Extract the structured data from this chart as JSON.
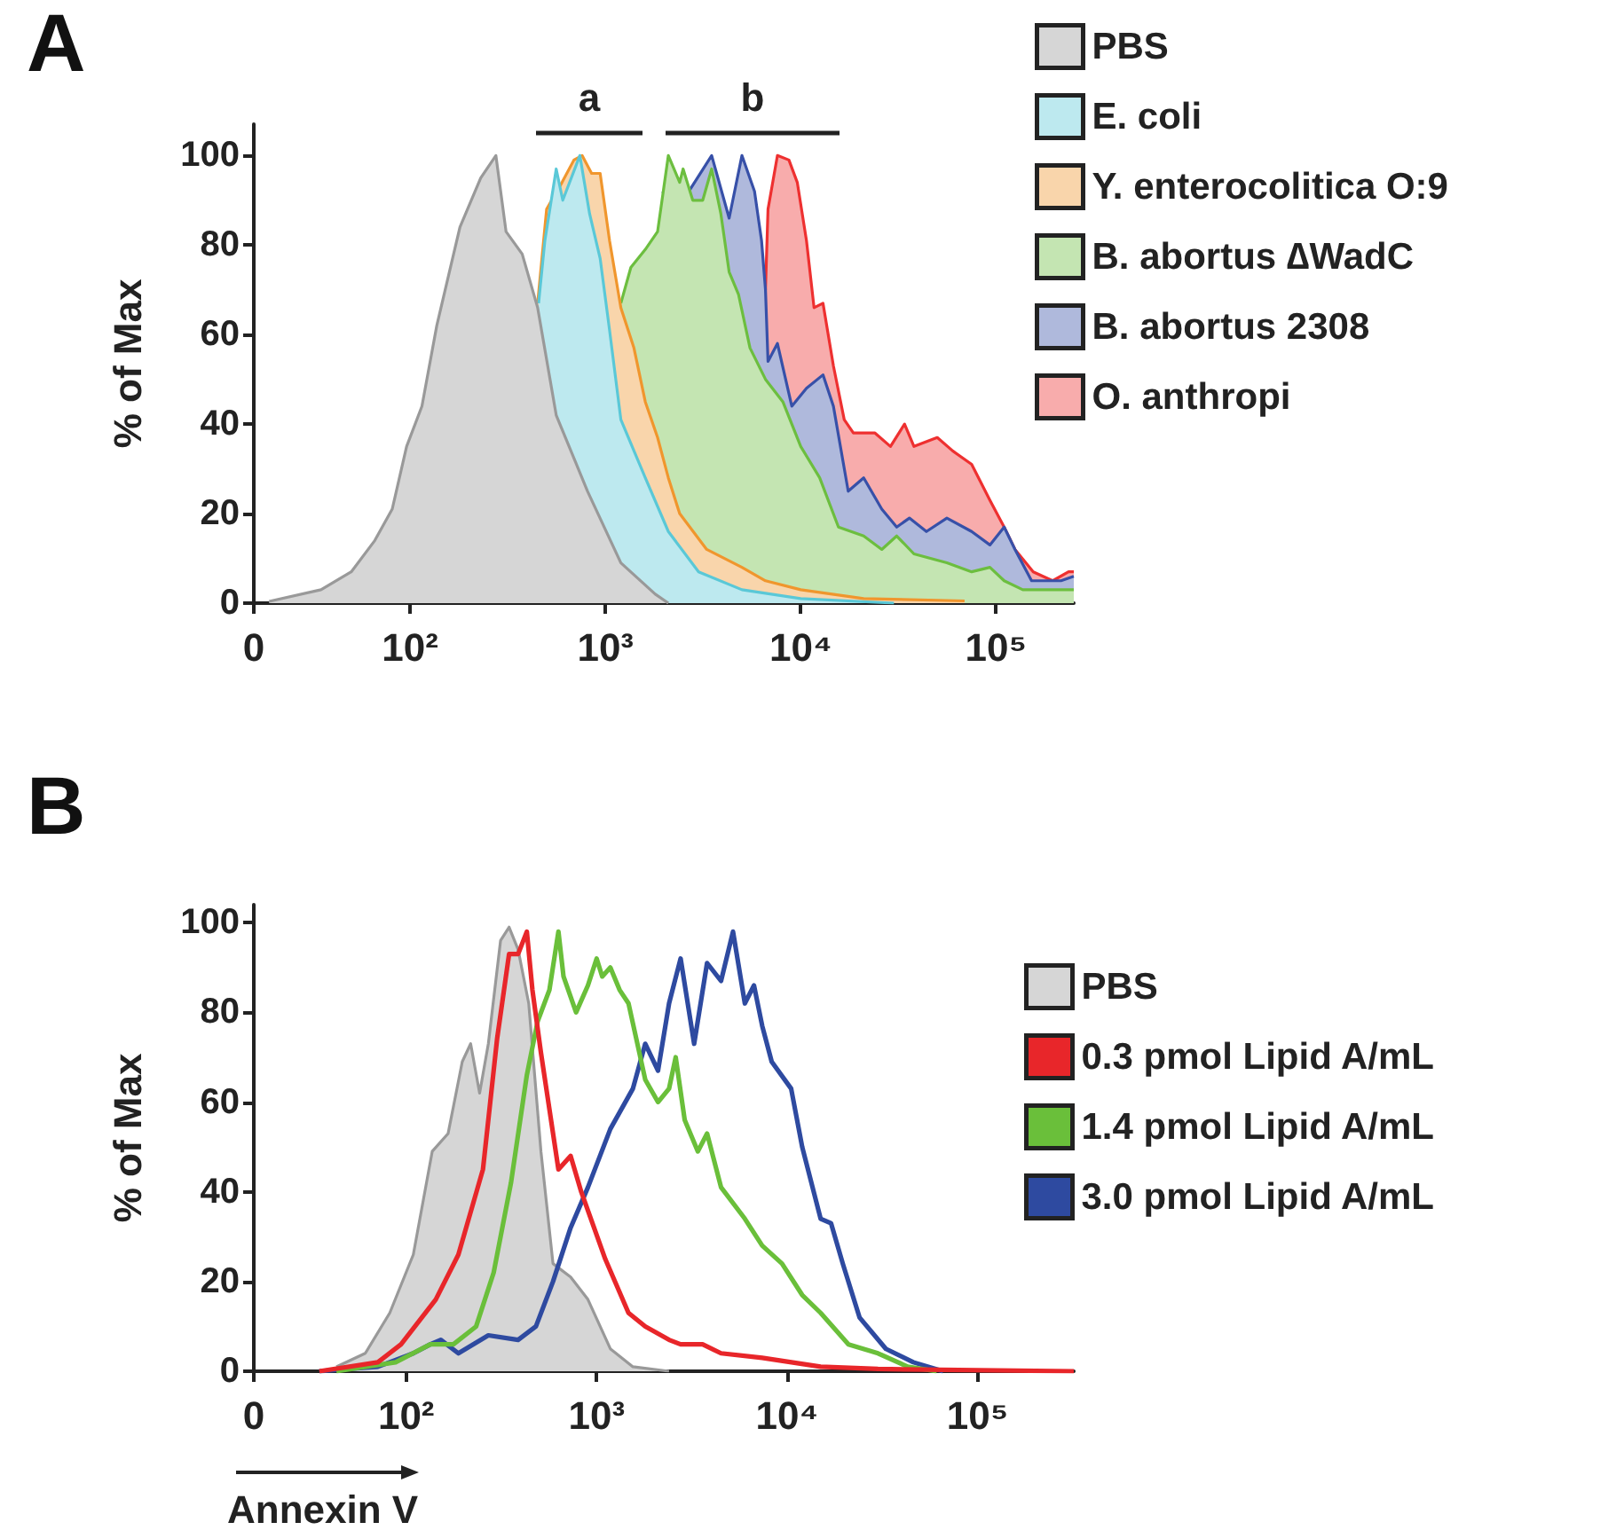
{
  "chart_data": [
    {
      "type": "area",
      "title": "A",
      "ylabel": "% of Max",
      "annotations": [
        "a",
        "b"
      ],
      "legend": "top right",
      "log": "x",
      "xlim": [
        0,
        250000
      ],
      "xticks": [
        0,
        {
          "value": 100,
          "label": "10²"
        },
        {
          "value": 1000,
          "label": "10³"
        },
        {
          "value": 10000,
          "label": "10⁴"
        },
        {
          "value": 100000,
          "label": "10⁵"
        }
      ],
      "ylim": [
        0,
        107
      ],
      "yticks": [
        0,
        20,
        40,
        60,
        80,
        100
      ],
      "series": [
        {
          "name": "PBS",
          "color": "#d6d6d6",
          "x": [
            19,
            35,
            50,
            66,
            81,
            96,
            115,
            137,
            180,
            230,
            275,
            310,
            375,
            450,
            560,
            810,
            1200,
            1800,
            2100
          ],
          "values": [
            0.4,
            3,
            7,
            14,
            21,
            35,
            44,
            62,
            84,
            95,
            100,
            83,
            78,
            66,
            42,
            25,
            9,
            2,
            0
          ]
        },
        {
          "name": "E. coli",
          "color": "#bde9ef",
          "x": [
            455,
            490,
            560,
            605,
            740,
            830,
            940,
            1050,
            1200,
            1600,
            2100,
            3000,
            5000,
            10000,
            30000
          ],
          "values": [
            67,
            81,
            97,
            90,
            100,
            87,
            77,
            61,
            41,
            28,
            16,
            7,
            3,
            1,
            0
          ]
        },
        {
          "name": "Y. enterocolitica O:9",
          "color": "#f9d5ab",
          "x": [
            450,
            500,
            600,
            690,
            760,
            850,
            940,
            1050,
            1200,
            1400,
            1600,
            1850,
            2100,
            2400,
            3300,
            5000,
            6600,
            10000,
            21000,
            69000
          ],
          "values": [
            67,
            88,
            94,
            99,
            100,
            96,
            96,
            81,
            66,
            57,
            45,
            37,
            28,
            20,
            12,
            8,
            5,
            3,
            1,
            0.5
          ]
        },
        {
          "name": "B. abortus ∆WadC",
          "color": "#c4e5b2",
          "x": [
            1200,
            1350,
            1600,
            1850,
            2100,
            2400,
            2500,
            2800,
            3150,
            3500,
            3900,
            4300,
            4800,
            5500,
            6600,
            8100,
            10000,
            12500,
            15600,
            21000,
            26000,
            31000,
            38000,
            56000,
            75000,
            93000,
            110000,
            137000,
            195000,
            250000
          ],
          "values": [
            67,
            75,
            79,
            83,
            100,
            94,
            97,
            90,
            90,
            97,
            87,
            74,
            69,
            57,
            50,
            45,
            35,
            28,
            17,
            15,
            12,
            15,
            11,
            9,
            7,
            8,
            5,
            3,
            3,
            3
          ]
        },
        {
          "name": "B. abortus 2308",
          "color": "#afb9dc",
          "x": [
            1950,
            2500,
            3500,
            4300,
            5000,
            5800,
            6300,
            6600,
            6800,
            7600,
            9000,
            10700,
            13000,
            14700,
            17500,
            21000,
            26000,
            31000,
            36000,
            44000,
            56000,
            75000,
            93000,
            110000,
            125000,
            152000,
            215000,
            250000
          ],
          "values": [
            92,
            90,
            100,
            86,
            100,
            92,
            81,
            70,
            54,
            58,
            44,
            48,
            51,
            44,
            25,
            28,
            21,
            17,
            19,
            16,
            19,
            16,
            13,
            17,
            12,
            5,
            5,
            6
          ]
        },
        {
          "name": "O. anthropi",
          "color": "#f8acac",
          "x": [
            6600,
            6800,
            7600,
            8700,
            9600,
            10700,
            11700,
            13000,
            14700,
            16700,
            18600,
            21000,
            24000,
            28800,
            34000,
            38000,
            50000,
            60000,
            75000,
            93000,
            110000,
            125000,
            155000,
            195000,
            235000,
            250000
          ],
          "values": [
            70,
            88,
            100,
            99,
            94,
            81,
            66,
            67,
            53,
            41,
            38,
            38,
            38,
            35,
            40,
            35,
            37,
            34,
            31,
            23,
            17,
            12,
            7,
            5,
            7,
            7
          ]
        }
      ]
    },
    {
      "type": "line",
      "title": "B",
      "ylabel": "% of Max",
      "xlabel": "Annexin V",
      "legend": "right",
      "log": "x",
      "xlim": [
        0,
        320000
      ],
      "xticks": [
        0,
        {
          "value": 100,
          "label": "10²"
        },
        {
          "value": 1000,
          "label": "10³"
        },
        {
          "value": 10000,
          "label": "10⁴"
        },
        {
          "value": 100000,
          "label": "10⁵"
        }
      ],
      "ylim": [
        0,
        104
      ],
      "yticks": [
        0,
        20,
        40,
        60,
        80,
        100
      ],
      "series": [
        {
          "name": "PBS",
          "type": "area",
          "color": "#d6d6d6",
          "x": [
            43,
            61,
            82,
            109,
            137,
            166,
            197,
            218,
            243,
            270,
            313,
            347,
            387,
            440,
            510,
            590,
            730,
            900,
            1180,
            1550,
            2400
          ],
          "values": [
            1,
            4,
            13,
            26,
            49,
            53,
            69,
            73,
            62,
            73,
            96,
            99,
            94,
            82,
            49,
            24,
            21,
            16,
            5,
            1,
            0
          ]
        },
        {
          "name": "0.3 pmol Lipid A/mL",
          "color": "#e8262a",
          "x": [
            35,
            71,
            94,
            143,
            188,
            253,
            300,
            347,
            387,
            430,
            460,
            510,
            630,
            730,
            830,
            1110,
            1470,
            1800,
            2400,
            2760,
            3600,
            4500,
            7400,
            15000,
            30000,
            320000
          ],
          "values": [
            0,
            2,
            6,
            16,
            26,
            45,
            74,
            93,
            93,
            98,
            85,
            71,
            45,
            48,
            40,
            25,
            13,
            10,
            7,
            6,
            6,
            4,
            3,
            1,
            0.5,
            0
          ]
        },
        {
          "name": "1.4 pmol Lipid A/mL",
          "color": "#6abf3a",
          "x": [
            43,
            88,
            134,
            177,
            233,
            288,
            355,
            430,
            490,
            565,
            630,
            670,
            780,
            900,
            1000,
            1070,
            1180,
            1320,
            1470,
            1800,
            2100,
            2400,
            2600,
            2900,
            3400,
            3800,
            4500,
            6000,
            7400,
            9400,
            12000,
            15000,
            21000,
            30000,
            43000,
            61000
          ],
          "values": [
            0,
            2,
            6,
            6,
            10,
            22,
            42,
            66,
            78,
            85,
            98,
            88,
            80,
            86,
            92,
            88,
            90,
            85,
            82,
            65,
            60,
            63,
            70,
            56,
            49,
            53,
            41,
            34,
            28,
            24,
            17,
            13,
            6,
            4,
            1,
            0
          ]
        },
        {
          "name": "3.0 pmol Lipid A/mL",
          "color": "#2e4aa0",
          "x": [
            35,
            71,
            109,
            134,
            152,
            188,
            270,
            387,
            480,
            590,
            730,
            900,
            1180,
            1550,
            1800,
            2100,
            2400,
            2760,
            3250,
            3800,
            4500,
            5200,
            6000,
            6700,
            7400,
            8300,
            10500,
            12000,
            15000,
            17000,
            19600,
            24000,
            33000,
            46000,
            66000
          ],
          "values": [
            0,
            1,
            4,
            6,
            7,
            4,
            8,
            7,
            10,
            20,
            32,
            41,
            54,
            63,
            73,
            67,
            82,
            92,
            73,
            91,
            87,
            98,
            82,
            86,
            77,
            69,
            63,
            50,
            34,
            33,
            24,
            12,
            5,
            2,
            0
          ]
        }
      ]
    }
  ]
}
